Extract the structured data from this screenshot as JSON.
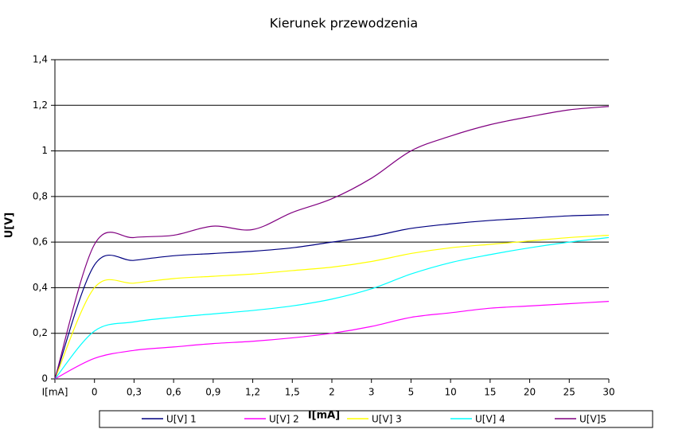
{
  "chart_data": {
    "type": "line",
    "title": "Kierunek przewodzenia",
    "x_label": "I[mA]",
    "y_label": "U[V]",
    "categories": [
      "I[mA]",
      "0",
      "0,3",
      "0,6",
      "0,9",
      "1,2",
      "1,5",
      "2",
      "3",
      "5",
      "10",
      "15",
      "20",
      "25",
      "30"
    ],
    "series": [
      {
        "name": "U[V] 1",
        "color": "#000080",
        "values": [
          0,
          0.5,
          0.52,
          0.54,
          0.55,
          0.56,
          0.575,
          0.6,
          0.625,
          0.66,
          0.68,
          0.695,
          0.705,
          0.715,
          0.72
        ]
      },
      {
        "name": "U[V] 2",
        "color": "#ff00ff",
        "values": [
          0,
          0.09,
          0.125,
          0.14,
          0.155,
          0.165,
          0.18,
          0.2,
          0.23,
          0.27,
          0.29,
          0.31,
          0.32,
          0.33,
          0.34
        ]
      },
      {
        "name": "U[V] 3",
        "color": "#ffff00",
        "values": [
          0,
          0.4,
          0.42,
          0.44,
          0.45,
          0.46,
          0.475,
          0.49,
          0.515,
          0.55,
          0.575,
          0.59,
          0.605,
          0.62,
          0.63
        ]
      },
      {
        "name": "U[V] 4",
        "color": "#00ffff",
        "values": [
          0,
          0.21,
          0.25,
          0.27,
          0.285,
          0.3,
          0.32,
          0.35,
          0.395,
          0.46,
          0.51,
          0.545,
          0.575,
          0.6,
          0.62
        ]
      },
      {
        "name": "U[V]5",
        "color": "#800080",
        "values": [
          0,
          0.59,
          0.62,
          0.63,
          0.67,
          0.655,
          0.73,
          0.79,
          0.88,
          1.0,
          1.065,
          1.115,
          1.15,
          1.18,
          1.195
        ]
      }
    ],
    "ylim": [
      0,
      1.4
    ],
    "yticks": [
      0,
      {
        "value": 0.2,
        "label": "0,2"
      },
      {
        "value": 0.4,
        "label": "0,4"
      },
      {
        "value": 0.6,
        "label": "0,6"
      },
      {
        "value": 0.8,
        "label": "0,8"
      },
      1,
      {
        "value": 1.2,
        "label": "1,2"
      },
      {
        "value": 1.4,
        "label": "1,4"
      }
    ],
    "grid": true,
    "legend": "bottom"
  }
}
